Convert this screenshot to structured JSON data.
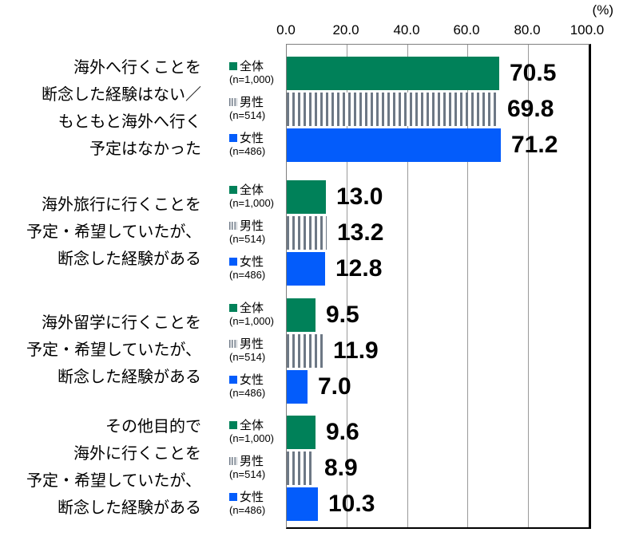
{
  "chart_data": {
    "type": "bar",
    "orientation": "horizontal",
    "title": "",
    "unit_label": "(%)",
    "xlabel": "",
    "ylabel": "",
    "xlim": [
      0,
      100
    ],
    "x_ticks": [
      "0.0",
      "20.0",
      "40.0",
      "60.0",
      "80.0",
      "100.0"
    ],
    "gridlines_at": [
      20,
      40,
      60,
      80
    ],
    "grid": true,
    "legend_position": "left-of-each-bar",
    "series": [
      {
        "name": "全体",
        "n_label": "(n=1,000)",
        "pattern": "solid",
        "color": "#008159"
      },
      {
        "name": "男性",
        "n_label": "(n=514)",
        "pattern": "vertical-stripes",
        "color": "#6D7885"
      },
      {
        "name": "女性",
        "n_label": "(n=486)",
        "pattern": "solid",
        "color": "#035CFB"
      }
    ],
    "categories": [
      {
        "label_lines": [
          "海外へ行くことを",
          "断念した経験はない／",
          "もともと海外へ行く",
          "予定はなかった"
        ],
        "values": [
          70.5,
          69.8,
          71.2
        ]
      },
      {
        "label_lines": [
          "海外旅行に行くことを",
          "予定・希望していたが、",
          "断念した経験がある"
        ],
        "values": [
          13.0,
          13.2,
          12.8
        ]
      },
      {
        "label_lines": [
          "海外留学に行くことを",
          "予定・希望していたが、",
          "断念した経験がある"
        ],
        "values": [
          9.5,
          11.9,
          7.0
        ]
      },
      {
        "label_lines": [
          "その他目的で",
          "海外に行くことを",
          "予定・希望していたが、",
          "断念した経験がある"
        ],
        "values": [
          9.6,
          8.9,
          10.3
        ]
      }
    ]
  }
}
